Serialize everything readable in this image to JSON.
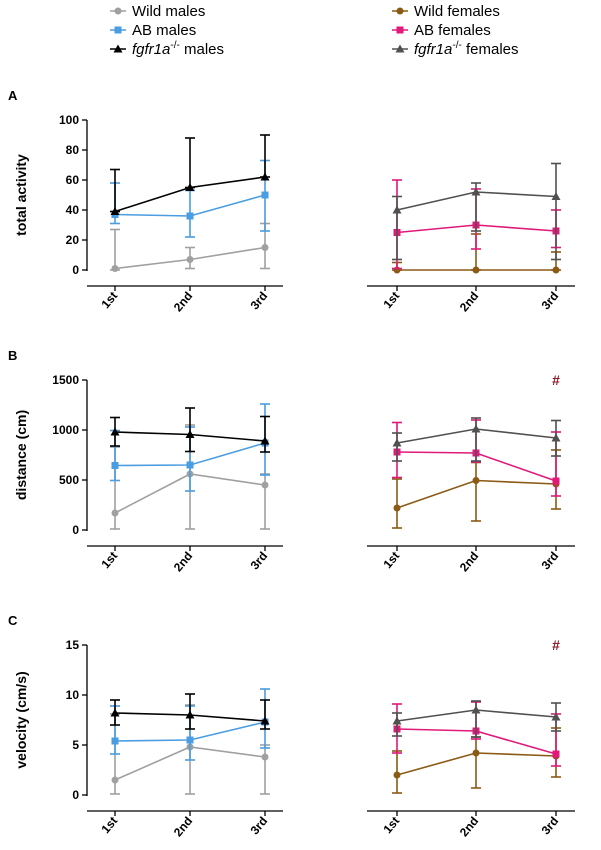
{
  "legend": {
    "left": [
      {
        "key": "wild_m",
        "label": "Wild males",
        "italic_prefix": "",
        "sup": "",
        "color": "#a0a0a0",
        "marker": "circle"
      },
      {
        "key": "ab_m",
        "label": "AB males",
        "italic_prefix": "",
        "sup": "",
        "color": "#4a9de0",
        "marker": "square"
      },
      {
        "key": "ko_m",
        "label": " males",
        "italic_prefix": "fgfr1a",
        "sup": "-/-",
        "color": "#000000",
        "marker": "triangle"
      }
    ],
    "right": [
      {
        "key": "wild_f",
        "label": "Wild females",
        "italic_prefix": "",
        "sup": "",
        "color": "#8b5a14",
        "marker": "circle"
      },
      {
        "key": "ab_f",
        "label": "AB females",
        "italic_prefix": "",
        "sup": "",
        "color": "#e0197a",
        "marker": "square"
      },
      {
        "key": "ko_f",
        "label": " females",
        "italic_prefix": "fgfr1a",
        "sup": "-/-",
        "color": "#505050",
        "marker": "triangle"
      }
    ]
  },
  "chart_data": [
    {
      "type": "line",
      "panel": "A",
      "ylabel": "total activity",
      "ylim": [
        0,
        100
      ],
      "yticks": [
        0,
        20,
        40,
        60,
        80,
        100
      ],
      "categories": [
        "1st",
        "2nd",
        "3rd"
      ],
      "males": [
        {
          "key": "wild_m",
          "values": [
            1,
            7,
            15
          ],
          "err_hi": [
            26,
            8,
            16
          ],
          "err_lo": [
            1,
            6,
            14
          ]
        },
        {
          "key": "ab_m",
          "values": [
            37,
            36,
            50
          ],
          "err_hi": [
            21,
            17,
            23
          ],
          "err_lo": [
            6,
            14,
            24
          ]
        },
        {
          "key": "ko_m",
          "values": [
            39,
            55,
            62
          ],
          "err_hi": [
            28,
            33,
            28
          ],
          "err_lo": [
            0,
            0,
            0
          ]
        }
      ],
      "females": [
        {
          "key": "wild_f",
          "values": [
            0,
            0,
            0
          ],
          "err_hi": [
            5,
            24,
            12
          ],
          "err_lo": [
            0,
            0,
            0
          ]
        },
        {
          "key": "ab_f",
          "values": [
            25,
            30,
            26
          ],
          "err_hi": [
            35,
            24,
            14
          ],
          "err_lo": [
            24,
            16,
            11
          ]
        },
        {
          "key": "ko_f",
          "values": [
            40,
            52,
            49
          ],
          "err_hi": [
            9,
            6,
            22
          ],
          "err_lo": [
            33,
            26,
            42
          ]
        }
      ],
      "hash": null
    },
    {
      "type": "line",
      "panel": "B",
      "ylabel": "distance (cm)",
      "ylim": [
        0,
        1500
      ],
      "yticks": [
        0,
        500,
        1000,
        1500
      ],
      "categories": [
        "1st",
        "2nd",
        "3rd"
      ],
      "males": [
        {
          "key": "wild_m",
          "values": [
            170,
            560,
            450
          ],
          "err_hi": [
            660,
            490,
            110
          ],
          "err_lo": [
            160,
            550,
            440
          ]
        },
        {
          "key": "ab_m",
          "values": [
            645,
            650,
            870
          ],
          "err_hi": [
            350,
            380,
            390
          ],
          "err_lo": [
            150,
            260,
            320
          ]
        },
        {
          "key": "ko_m",
          "values": [
            980,
            955,
            890
          ],
          "err_hi": [
            145,
            265,
            245
          ],
          "err_lo": [
            140,
            170,
            110
          ]
        }
      ],
      "females": [
        {
          "key": "wild_f",
          "values": [
            220,
            495,
            460
          ],
          "err_hi": [
            290,
            180,
            340
          ],
          "err_lo": [
            200,
            405,
            250
          ]
        },
        {
          "key": "ab_f",
          "values": [
            780,
            770,
            490
          ],
          "err_hi": [
            295,
            330,
            490
          ],
          "err_lo": [
            255,
            90,
            150
          ]
        },
        {
          "key": "ko_f",
          "values": [
            870,
            1010,
            920
          ],
          "err_hi": [
            100,
            110,
            175
          ],
          "err_lo": [
            180,
            320,
            180
          ]
        }
      ],
      "hash": {
        "text": "#",
        "category": "3rd",
        "color": "#8b1a2a"
      }
    },
    {
      "type": "line",
      "panel": "C",
      "ylabel": "velocity (cm/s)",
      "ylim": [
        0,
        15
      ],
      "yticks": [
        0,
        5,
        10,
        15
      ],
      "categories": [
        "1st",
        "2nd",
        "3rd"
      ],
      "males": [
        {
          "key": "wild_m",
          "values": [
            1.5,
            4.8,
            3.8
          ],
          "err_hi": [
            6.6,
            4.2,
            1.2
          ],
          "err_lo": [
            1.4,
            4.7,
            3.7
          ]
        },
        {
          "key": "ab_m",
          "values": [
            5.4,
            5.5,
            7.3
          ],
          "err_hi": [
            3.5,
            3.4,
            3.3
          ],
          "err_lo": [
            1.3,
            2.0,
            2.6
          ]
        },
        {
          "key": "ko_m",
          "values": [
            8.2,
            8.0,
            7.4
          ],
          "err_hi": [
            1.3,
            2.1,
            2.1
          ],
          "err_lo": [
            1.2,
            1.4,
            0.8
          ]
        }
      ],
      "females": [
        {
          "key": "wild_f",
          "values": [
            2.0,
            4.2,
            3.9
          ],
          "err_hi": [
            2.4,
            1.6,
            2.8
          ],
          "err_lo": [
            1.8,
            3.5,
            2.1
          ]
        },
        {
          "key": "ab_f",
          "values": [
            6.6,
            6.4,
            4.1
          ],
          "err_hi": [
            2.5,
            2.9,
            4.0
          ],
          "err_lo": [
            2.4,
            0.8,
            1.2
          ]
        },
        {
          "key": "ko_f",
          "values": [
            7.4,
            8.5,
            7.8
          ],
          "err_hi": [
            0.8,
            0.9,
            1.4
          ],
          "err_lo": [
            1.5,
            2.7,
            1.4
          ]
        }
      ],
      "hash": {
        "text": "#",
        "category": "3rd",
        "color": "#8b1a2a"
      }
    }
  ]
}
